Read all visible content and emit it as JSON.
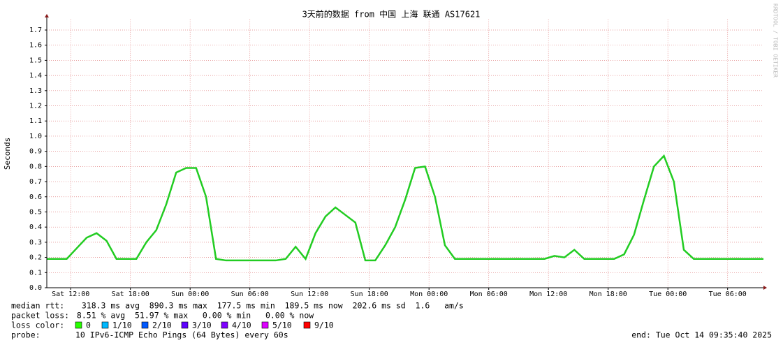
{
  "chart_data": {
    "type": "line",
    "title": "3天前的数据 from 中国 上海 联通 AS17621",
    "y_label": "Seconds",
    "watermark": "RRDTOOL / TOBI OETIKER",
    "x": [
      0,
      1,
      2,
      3,
      4,
      5,
      6,
      7,
      8,
      9,
      10,
      11,
      12,
      13,
      14,
      15,
      16,
      17,
      18,
      19,
      20,
      21,
      22,
      23,
      24,
      25,
      26,
      27,
      28,
      29,
      30,
      31,
      32,
      33,
      34,
      35,
      36,
      37,
      38,
      39,
      40,
      41,
      42,
      43,
      44,
      45,
      46,
      47,
      48,
      49,
      50,
      51,
      52,
      53,
      54,
      55,
      56,
      57,
      58,
      59,
      60,
      61,
      62,
      63,
      64,
      65,
      66,
      67,
      68,
      69,
      70,
      71,
      72
    ],
    "series": [
      {
        "name": "median rtt:",
        "color": "#22cc22",
        "values": [
          0.19,
          0.19,
          0.19,
          0.26,
          0.33,
          0.36,
          0.31,
          0.19,
          0.19,
          0.19,
          0.3,
          0.38,
          0.55,
          0.76,
          0.79,
          0.79,
          0.6,
          0.19,
          0.18,
          0.18,
          0.18,
          0.18,
          0.18,
          0.18,
          0.19,
          0.27,
          0.19,
          0.36,
          0.47,
          0.53,
          0.48,
          0.43,
          0.18,
          0.18,
          0.28,
          0.4,
          0.58,
          0.79,
          0.8,
          0.6,
          0.28,
          0.19,
          0.19,
          0.19,
          0.19,
          0.19,
          0.19,
          0.19,
          0.19,
          0.19,
          0.19,
          0.21,
          0.2,
          0.25,
          0.19,
          0.19,
          0.19,
          0.19,
          0.22,
          0.35,
          0.58,
          0.8,
          0.87,
          0.7,
          0.25,
          0.19,
          0.19,
          0.19,
          0.19,
          0.19,
          0.19,
          0.19,
          0.19
        ]
      }
    ],
    "xlim": [
      0,
      72
    ],
    "xticks": [
      {
        "value": 2.4,
        "label": "Sat 12:00"
      },
      {
        "value": 8.4,
        "label": "Sat 18:00"
      },
      {
        "value": 14.4,
        "label": "Sun 00:00"
      },
      {
        "value": 20.4,
        "label": "Sun 06:00"
      },
      {
        "value": 26.4,
        "label": "Sun 12:00"
      },
      {
        "value": 32.4,
        "label": "Sun 18:00"
      },
      {
        "value": 38.4,
        "label": "Mon 00:00"
      },
      {
        "value": 44.4,
        "label": "Mon 06:00"
      },
      {
        "value": 50.4,
        "label": "Mon 12:00"
      },
      {
        "value": 56.4,
        "label": "Mon 18:00"
      },
      {
        "value": 62.4,
        "label": "Tue 00:00"
      },
      {
        "value": 68.4,
        "label": "Tue 06:00"
      }
    ],
    "ylim": [
      0,
      1.77
    ],
    "yticks": [
      {
        "value": 0,
        "label": "0.0"
      },
      0.1,
      0.2,
      0.3,
      0.4,
      0.5,
      0.6,
      0.7,
      0.8,
      0.9,
      {
        "value": 1,
        "label": "1.0"
      },
      1.1,
      1.2,
      1.3,
      1.4,
      1.5,
      1.6,
      1.7
    ],
    "grid": true,
    "median_rtt_stats": "  318.3 ms avg  890.3 ms max  177.5 ms min  189.5 ms now  202.6 ms sd  1.6   am/s",
    "packet_loss_label": "packet loss:",
    "packet_loss_stats": " 8.51 % avg  51.97 % max   0.00 % min   0.00 % now",
    "loss_color_label": "loss color:",
    "loss_colors": [
      {
        "label": "0",
        "color": "#26ff00"
      },
      {
        "label": "1/10",
        "color": "#00b8ff"
      },
      {
        "label": "2/10",
        "color": "#0059ff"
      },
      {
        "label": "3/10",
        "color": "#5e00ff"
      },
      {
        "label": "4/10",
        "color": "#7e00ff"
      },
      {
        "label": "5/10",
        "color": "#dd00ff"
      },
      {
        "label": "9/10",
        "color": "#ff0000"
      }
    ],
    "probe_label": "probe:",
    "probe": "10 IPv6-ICMP Echo Pings (64 Bytes) every 60s",
    "end": "end: Tue Oct 14 09:35:40 2025"
  }
}
